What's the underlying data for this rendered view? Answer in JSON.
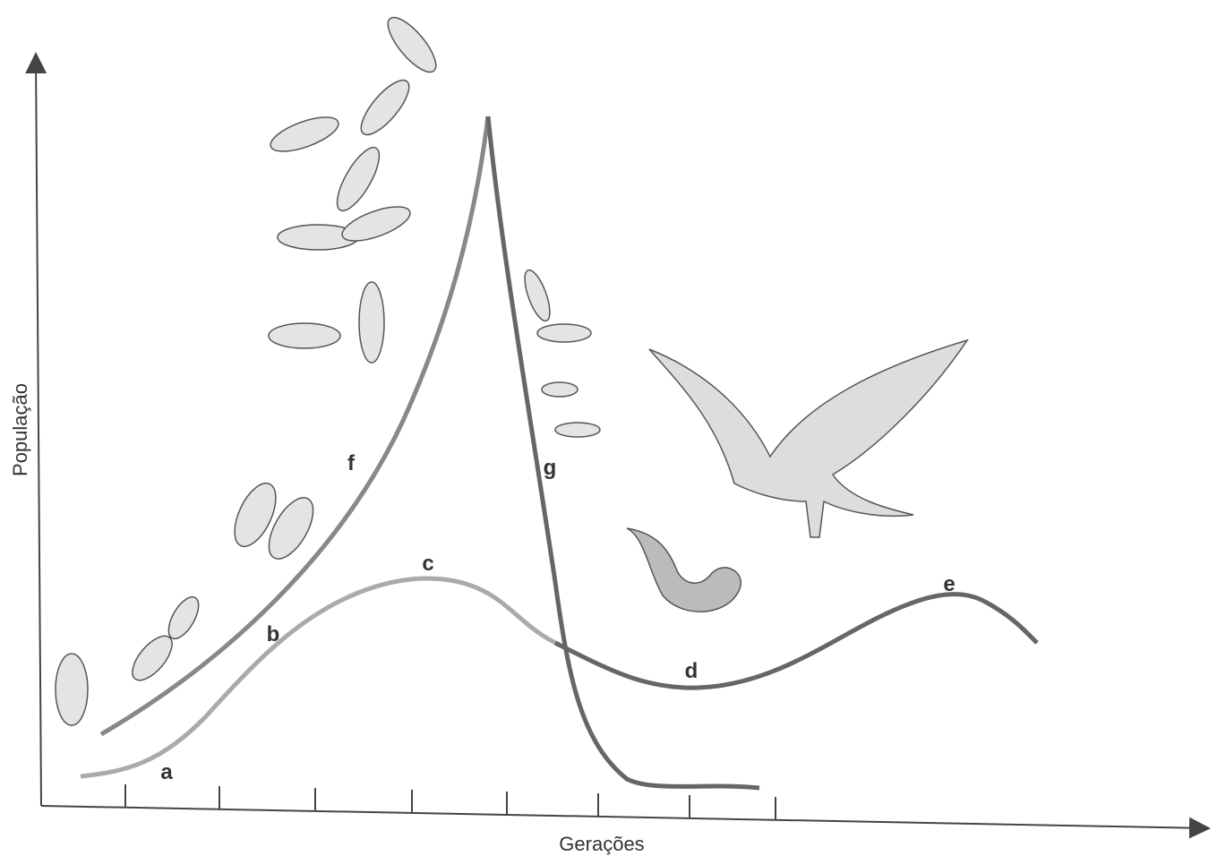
{
  "axes": {
    "y_label": "População",
    "x_label": "Gerações"
  },
  "curve_labels": [
    "a",
    "b",
    "c",
    "d",
    "e",
    "f",
    "g"
  ]
}
